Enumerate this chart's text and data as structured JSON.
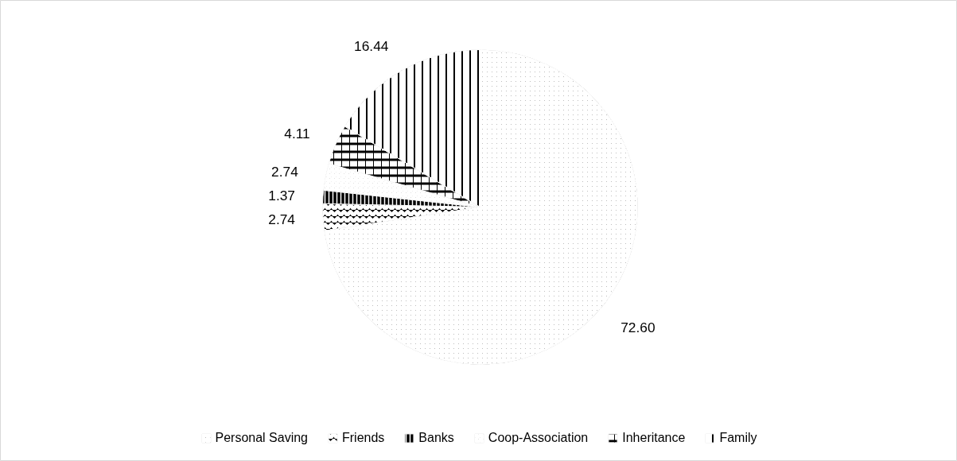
{
  "chart_data": {
    "type": "pie",
    "categories": [
      "Personal Saving",
      "Friends",
      "Banks",
      "Coop-Association",
      "Inheritance",
      "Family"
    ],
    "values": [
      72.6,
      2.74,
      1.37,
      2.74,
      4.11,
      16.44
    ],
    "value_labels": [
      "72.60",
      "2.74",
      "1.37",
      "2.74",
      "4.11",
      "16.44"
    ],
    "colors": [
      "#000000",
      "#000000",
      "#000000",
      "#000000",
      "#000000",
      "#000000"
    ],
    "legend": "bottom"
  }
}
